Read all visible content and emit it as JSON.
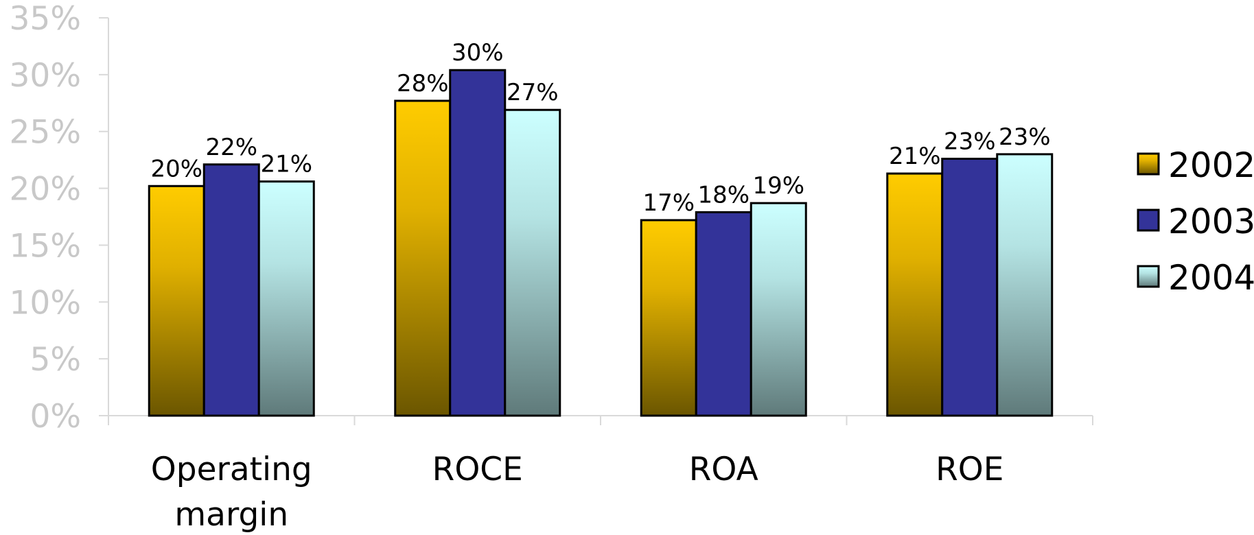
{
  "chart_data": {
    "type": "bar",
    "categories": [
      "Operating margin",
      "ROCE",
      "ROA",
      "ROE"
    ],
    "series": [
      {
        "name": "2002",
        "values": [
          20.2,
          27.7,
          17.2,
          21.3
        ],
        "labels": [
          "20%",
          "28%",
          "17%",
          "21%"
        ],
        "color": "#ffcc00"
      },
      {
        "name": "2003",
        "values": [
          22.1,
          30.4,
          17.9,
          22.6
        ],
        "labels": [
          "22%",
          "30%",
          "18%",
          "23%"
        ],
        "color": "#333399"
      },
      {
        "name": "2004",
        "values": [
          20.6,
          26.9,
          18.7,
          23.0
        ],
        "labels": [
          "21%",
          "27%",
          "19%",
          "23%"
        ],
        "color": "#ccffff"
      }
    ],
    "ylim": [
      0,
      35
    ],
    "yticks": [
      "0%",
      "5%",
      "10%",
      "15%",
      "20%",
      "25%",
      "30%",
      "35%"
    ],
    "ytick_values": [
      0,
      5,
      10,
      15,
      20,
      25,
      30,
      35
    ],
    "legend_position": "right",
    "grid": false
  }
}
